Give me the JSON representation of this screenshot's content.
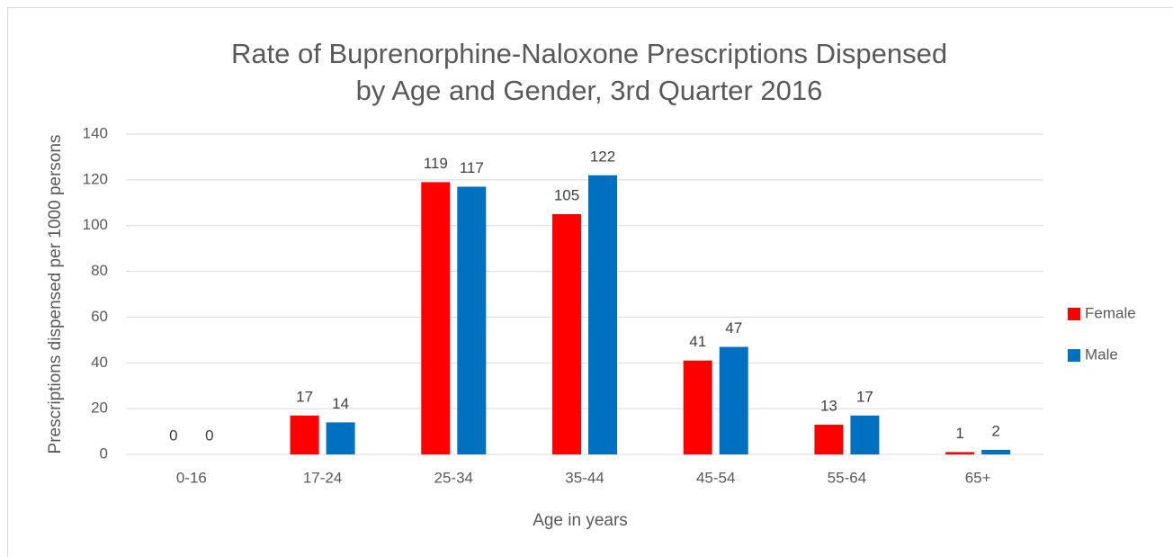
{
  "chart_data": {
    "type": "bar",
    "title": [
      "Rate of Buprenorphine-Naloxone Prescriptions Dispensed",
      "by Age and Gender, 3rd Quarter 2016"
    ],
    "x_label": "Age in years",
    "y_label": "Prescriptions dispensed per 1000 persons",
    "categories": [
      "0-16",
      "17-24",
      "25-34",
      "35-44",
      "45-54",
      "55-64",
      "65+"
    ],
    "series": [
      {
        "name": "Female",
        "color": "#ff0000",
        "values": [
          0,
          17,
          119,
          105,
          41,
          13,
          1
        ]
      },
      {
        "name": "Male",
        "color": "#0070c0",
        "values": [
          0,
          14,
          117,
          122,
          47,
          17,
          2
        ]
      }
    ],
    "ylim": [
      0,
      140
    ],
    "yticks": [
      0,
      20,
      40,
      60,
      80,
      100,
      120,
      140
    ],
    "grid": true,
    "legend": "right"
  }
}
